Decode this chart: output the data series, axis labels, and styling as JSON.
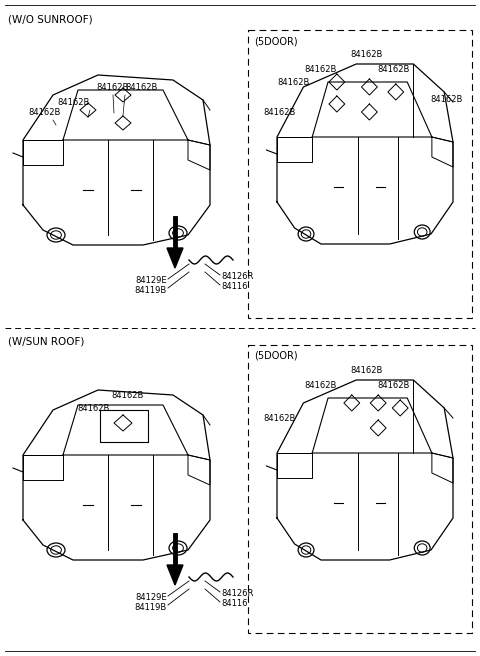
{
  "bg_color": "#ffffff",
  "line_color": "#000000",
  "font_size": 7,
  "header_top": "(W/O SUNROOF)",
  "header_bot": "(W/SUN ROOF)",
  "label_84162B": "84162B",
  "label_84129E": "84129E",
  "label_84119B": "84119B",
  "label_84126R": "84126R",
  "label_84116": "84116",
  "label_5door": "(5DOOR)"
}
